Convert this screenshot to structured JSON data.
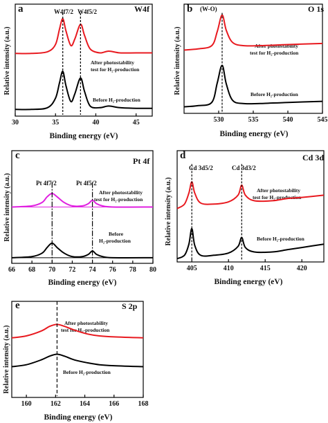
{
  "figure": {
    "panels": [
      {
        "letter": "a",
        "name": "W4f",
        "xlabel": "Binding energy (eV)",
        "ylabel": "Relative intensity (a.u.)",
        "peak_labels": [
          "W4f7/2",
          "W4f5/2"
        ],
        "annotations": [
          [
            "After photostability",
            "test for H₂-production"
          ],
          [
            "Before H₂-production"
          ]
        ]
      },
      {
        "letter": "b",
        "name": "O 1s",
        "xlabel": "Binding energy (eV)",
        "ylabel": "Relative intensity (a.u.)",
        "peak_labels": [
          "(W-O)"
        ],
        "annotations": [
          [
            "After photostability",
            "test for H₂-production"
          ],
          [
            "Before H₂-production"
          ]
        ]
      },
      {
        "letter": "c",
        "name": "Pt 4f",
        "xlabel": "Binding energy (eV)",
        "ylabel": "Relative intensity (a.u.)",
        "peak_labels": [
          "Pt 4f7/2",
          "Pt 4f5/2"
        ],
        "annotations": [
          [
            "After photostability",
            "test for H₂-production"
          ],
          [
            "Before",
            "H₂-production"
          ]
        ]
      },
      {
        "letter": "d",
        "name": "Cd 3d",
        "xlabel": "Binding energy (eV)",
        "ylabel": "Relative intensity (a.u.)",
        "peak_labels": [
          "Cd 3d5/2",
          "Cd 3d3/2"
        ],
        "annotations": [
          [
            "After photostability",
            "test for H₂-production"
          ],
          [
            "Before H₂-production"
          ]
        ]
      },
      {
        "letter": "e",
        "name": "S 2p",
        "xlabel": "Binding energy (eV)",
        "ylabel": "Relative intensity (a.u.)",
        "peak_labels": [],
        "annotations": [
          [
            "After photostability",
            "test for H₂-production"
          ],
          [
            "Before H₂-production"
          ]
        ]
      }
    ]
  },
  "chart_data": [
    {
      "type": "line",
      "title": "W4f",
      "xlabel": "Binding energy (eV)",
      "ylabel": "Relative intensity (a.u.)",
      "xlim": [
        30,
        47
      ],
      "xticks": [
        30,
        35,
        40,
        45
      ],
      "peak_positions": [
        35.9,
        38.1
      ],
      "series": [
        {
          "color": "#e8191f",
          "baseline": 0.56,
          "points": [
            [
              30,
              0.56
            ],
            [
              32,
              0.56
            ],
            [
              34,
              0.575
            ],
            [
              35,
              0.64
            ],
            [
              35.5,
              0.78
            ],
            [
              35.9,
              0.87
            ],
            [
              36.3,
              0.76
            ],
            [
              36.9,
              0.63
            ],
            [
              37.4,
              0.69
            ],
            [
              38.1,
              0.82
            ],
            [
              38.6,
              0.72
            ],
            [
              39.3,
              0.6
            ],
            [
              40.5,
              0.565
            ],
            [
              41.6,
              0.58
            ],
            [
              43,
              0.565
            ],
            [
              45,
              0.565
            ],
            [
              47,
              0.565
            ]
          ]
        },
        {
          "color": "#000000",
          "baseline": 0.06,
          "points": [
            [
              30,
              0.06
            ],
            [
              32,
              0.06
            ],
            [
              34,
              0.075
            ],
            [
              35,
              0.16
            ],
            [
              35.5,
              0.3
            ],
            [
              35.9,
              0.4
            ],
            [
              36.3,
              0.27
            ],
            [
              36.9,
              0.13
            ],
            [
              37.4,
              0.2
            ],
            [
              38.1,
              0.34
            ],
            [
              38.6,
              0.22
            ],
            [
              39.3,
              0.09
            ],
            [
              40.5,
              0.075
            ],
            [
              41.6,
              0.09
            ],
            [
              43,
              0.075
            ],
            [
              45,
              0.07
            ],
            [
              47,
              0.07
            ]
          ]
        }
      ]
    },
    {
      "type": "line",
      "title": "O 1s",
      "xlabel": "Binding energy (eV)",
      "ylabel": "Relative intensity (a.u.)",
      "xlim": [
        525,
        545
      ],
      "xticks": [
        530,
        535,
        540,
        545
      ],
      "peak_positions": [
        530.5
      ],
      "series": [
        {
          "color": "#e8191f",
          "baseline": 0.6,
          "points": [
            [
              525,
              0.58
            ],
            [
              527,
              0.59
            ],
            [
              529,
              0.62
            ],
            [
              529.8,
              0.75
            ],
            [
              530.5,
              0.9
            ],
            [
              531.1,
              0.76
            ],
            [
              532,
              0.65
            ],
            [
              533.5,
              0.62
            ],
            [
              536,
              0.62
            ],
            [
              540,
              0.63
            ],
            [
              545,
              0.64
            ]
          ]
        },
        {
          "color": "#000000",
          "baseline": 0.1,
          "points": [
            [
              525,
              0.06
            ],
            [
              527,
              0.07
            ],
            [
              529,
              0.1
            ],
            [
              529.8,
              0.28
            ],
            [
              530.5,
              0.44
            ],
            [
              531.1,
              0.27
            ],
            [
              532,
              0.12
            ],
            [
              533.5,
              0.09
            ],
            [
              536,
              0.09
            ],
            [
              540,
              0.1
            ],
            [
              545,
              0.11
            ]
          ]
        }
      ]
    },
    {
      "type": "line",
      "title": "Pt 4f",
      "xlabel": "Binding energy (eV)",
      "ylabel": "Relative intensity (a.u.)",
      "xlim": [
        66,
        80
      ],
      "xticks": [
        66,
        68,
        70,
        72,
        74,
        76,
        78,
        80
      ],
      "peak_positions": [
        70.0,
        74.0
      ],
      "series": [
        {
          "color": "#e020e0",
          "baseline": 0.5,
          "points": [
            [
              66,
              0.5
            ],
            [
              68,
              0.51
            ],
            [
              69,
              0.54
            ],
            [
              69.5,
              0.59
            ],
            [
              70,
              0.62
            ],
            [
              70.5,
              0.59
            ],
            [
              71.2,
              0.54
            ],
            [
              72,
              0.51
            ],
            [
              73,
              0.51
            ],
            [
              73.6,
              0.53
            ],
            [
              74,
              0.56
            ],
            [
              74.4,
              0.53
            ],
            [
              75,
              0.51
            ],
            [
              76,
              0.5
            ],
            [
              80,
              0.5
            ]
          ]
        },
        {
          "color": "#000000",
          "baseline": 0.05,
          "points": [
            [
              66,
              0.05
            ],
            [
              68,
              0.06
            ],
            [
              69,
              0.09
            ],
            [
              69.5,
              0.14
            ],
            [
              70,
              0.18
            ],
            [
              70.5,
              0.14
            ],
            [
              71.2,
              0.09
            ],
            [
              72,
              0.06
            ],
            [
              73,
              0.06
            ],
            [
              73.6,
              0.08
            ],
            [
              74,
              0.11
            ],
            [
              74.4,
              0.08
            ],
            [
              75,
              0.06
            ],
            [
              76,
              0.05
            ],
            [
              80,
              0.05
            ]
          ]
        }
      ]
    },
    {
      "type": "line",
      "title": "Cd 3d",
      "xlabel": "Binding energy (eV)",
      "ylabel": "Relative intensity (a.u.)",
      "xlim": [
        403,
        423
      ],
      "xticks": [
        405,
        410,
        415,
        420
      ],
      "peak_positions": [
        405.0,
        411.8
      ],
      "series": [
        {
          "color": "#e8191f",
          "baseline": 0.5,
          "points": [
            [
              403,
              0.48
            ],
            [
              404,
              0.52
            ],
            [
              404.6,
              0.62
            ],
            [
              405,
              0.72
            ],
            [
              405.4,
              0.62
            ],
            [
              406.2,
              0.53
            ],
            [
              408,
              0.52
            ],
            [
              410,
              0.54
            ],
            [
              411.3,
              0.6
            ],
            [
              411.8,
              0.69
            ],
            [
              412.3,
              0.6
            ],
            [
              413.5,
              0.55
            ],
            [
              416,
              0.55
            ],
            [
              418,
              0.57
            ],
            [
              420,
              0.58
            ],
            [
              423,
              0.6
            ]
          ]
        },
        {
          "color": "#000000",
          "baseline": 0.05,
          "points": [
            [
              403,
              0.03
            ],
            [
              404,
              0.06
            ],
            [
              404.6,
              0.16
            ],
            [
              405,
              0.3
            ],
            [
              405.4,
              0.15
            ],
            [
              406.2,
              0.06
            ],
            [
              408,
              0.06
            ],
            [
              410,
              0.08
            ],
            [
              411.3,
              0.14
            ],
            [
              411.8,
              0.22
            ],
            [
              412.3,
              0.13
            ],
            [
              413.5,
              0.09
            ],
            [
              416,
              0.09
            ],
            [
              418,
              0.11
            ],
            [
              420,
              0.13
            ],
            [
              423,
              0.16
            ]
          ]
        }
      ]
    },
    {
      "type": "line",
      "title": "S 2p",
      "xlabel": "Binding energy (eV)",
      "ylabel": "Relative intensity (a.u.)",
      "xlim": [
        159,
        168
      ],
      "xticks": [
        160,
        162,
        164,
        166,
        168
      ],
      "peak_positions": [
        162.1
      ],
      "series": [
        {
          "color": "#e8191f",
          "baseline": 0.62,
          "points": [
            [
              159,
              0.62
            ],
            [
              160,
              0.64
            ],
            [
              161,
              0.69
            ],
            [
              161.6,
              0.74
            ],
            [
              162.1,
              0.76
            ],
            [
              162.6,
              0.74
            ],
            [
              163.3,
              0.7
            ],
            [
              164.2,
              0.66
            ],
            [
              165,
              0.64
            ],
            [
              166,
              0.63
            ],
            [
              168,
              0.62
            ]
          ]
        },
        {
          "color": "#000000",
          "baseline": 0.32,
          "points": [
            [
              159,
              0.32
            ],
            [
              160,
              0.34
            ],
            [
              161,
              0.39
            ],
            [
              161.6,
              0.43
            ],
            [
              162.1,
              0.45
            ],
            [
              162.6,
              0.43
            ],
            [
              163.3,
              0.39
            ],
            [
              164.2,
              0.36
            ],
            [
              165,
              0.34
            ],
            [
              166,
              0.33
            ],
            [
              168,
              0.32
            ]
          ]
        }
      ]
    }
  ]
}
